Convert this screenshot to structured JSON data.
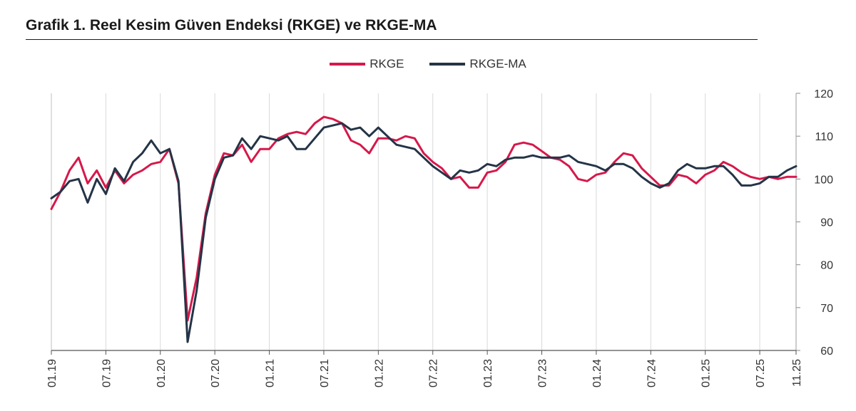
{
  "chart_data": {
    "type": "line",
    "title": "Grafik 1. Reel Kesim Güven Endeksi (RKGE) ve RKGE-MA",
    "ylim": [
      60,
      120
    ],
    "yticks": [
      60,
      70,
      80,
      90,
      100,
      110,
      120
    ],
    "x_ticks": [
      "01.19",
      "07.19",
      "01.20",
      "07.20",
      "01.21",
      "07.21",
      "01.22",
      "07.22",
      "01.23",
      "07.23",
      "01.24",
      "07.24",
      "01.25",
      "07.25",
      "11.25"
    ],
    "grid": "vertical",
    "legend": "top-center",
    "colors": {
      "RKGE": "#d6184a",
      "RKGE-MA": "#243447"
    },
    "series": [
      {
        "name": "RKGE",
        "values": [
          93,
          97,
          102,
          105,
          99,
          102,
          98,
          102,
          99,
          101,
          102,
          103.5,
          104,
          107,
          99,
          67,
          77,
          92,
          101,
          106,
          105.5,
          108,
          104,
          107,
          107,
          109.5,
          110.5,
          111,
          110.5,
          113,
          114.5,
          114,
          113,
          109,
          108,
          106,
          109.5,
          109.5,
          109,
          110,
          109.5,
          106,
          104,
          102.5,
          100,
          100.5,
          98,
          98,
          101.5,
          102,
          104,
          108,
          108.5,
          108,
          106.5,
          105,
          104.5,
          103,
          100,
          99.5,
          101,
          101.5,
          104,
          106,
          105.5,
          102.5,
          100.5,
          98.5,
          98.5,
          101,
          100.5,
          99,
          101,
          102,
          104,
          103,
          101.5,
          100.5,
          100,
          100.5,
          100,
          100.5,
          100.5
        ]
      },
      {
        "name": "RKGE-MA",
        "values": [
          95.5,
          97,
          99.5,
          100,
          94.5,
          100,
          96.5,
          102.5,
          99.5,
          104,
          106,
          109,
          106,
          107,
          99.5,
          62,
          74,
          91,
          100,
          105,
          105.5,
          109.5,
          107,
          110,
          109.5,
          109,
          110,
          107,
          107,
          109.5,
          112,
          112.5,
          113,
          111.5,
          112,
          110,
          112,
          110,
          108,
          107.5,
          107,
          105,
          103,
          101.5,
          100,
          102,
          101.5,
          102,
          103.5,
          103,
          104.5,
          105,
          105,
          105.5,
          105,
          105,
          105,
          105.5,
          104,
          103.5,
          103,
          102,
          103.5,
          103.5,
          102.5,
          100.5,
          99,
          98,
          99,
          102,
          103.5,
          102.5,
          102.5,
          103,
          103,
          101,
          98.5,
          98.5,
          99,
          100.5,
          100.5,
          102,
          103
        ]
      }
    ]
  }
}
